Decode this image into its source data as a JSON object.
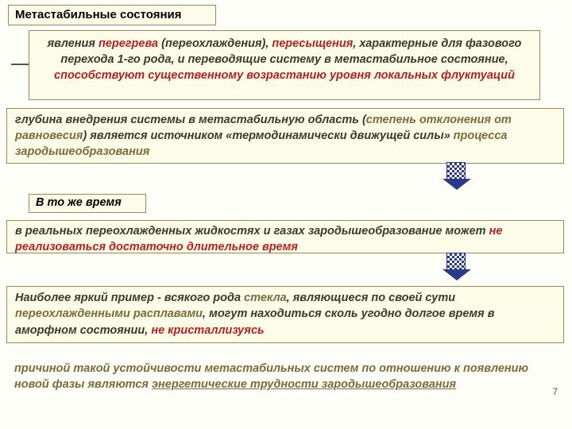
{
  "title": "Метастабильные состояния",
  "box1_p1": "явления ",
  "box1_red1": "перегрева",
  "box1_p2": " (переохлаждения), ",
  "box1_red2": "пересыщения",
  "box1_p3": ", характерные для фазового перехода 1-го рода, и переводящие систему в метастабильное состояние, ",
  "box1_red3": "способствуют существенному возрастанию уровня локальных флуктуаций",
  "box2_p1": "глубина внедрения системы в метастабильную область (",
  "box2_olive1": "степень отклонения от равновесия",
  "box2_p2": ") является источником «термодинамически движущей силы» ",
  "box2_olive2": "процесса зародышеобразования",
  "box3": "В то же время",
  "box35_p1": "в реальных переохлажденных жидкостях и газах зародышеобразование может ",
  "box35_red1": "не реализоваться достаточно длительное время",
  "box4_p1": "Наиболее яркий пример - всякого рода ",
  "box4_olive1": "стекла",
  "box4_p2": ", являющиеся по своей сути ",
  "box4_olive2": "переохлажденными расплавами",
  "box4_p3": ", могут находиться сколь угодно долгое время в аморфном состоянии, ",
  "box4_red1": "не кристаллизуясь",
  "footer_p1": "причиной такой устойчивости метастабильных систем по отношению к появлению новой фазы являются ",
  "footer_u1": "энергетические трудности зародышеобразования",
  "slidenum": "7",
  "colors": {
    "bg": "#fefef8",
    "boxbg": "#fcfce8",
    "border": "#9a8a5a",
    "red": "#b82020",
    "olive": "#7b6b3a"
  }
}
